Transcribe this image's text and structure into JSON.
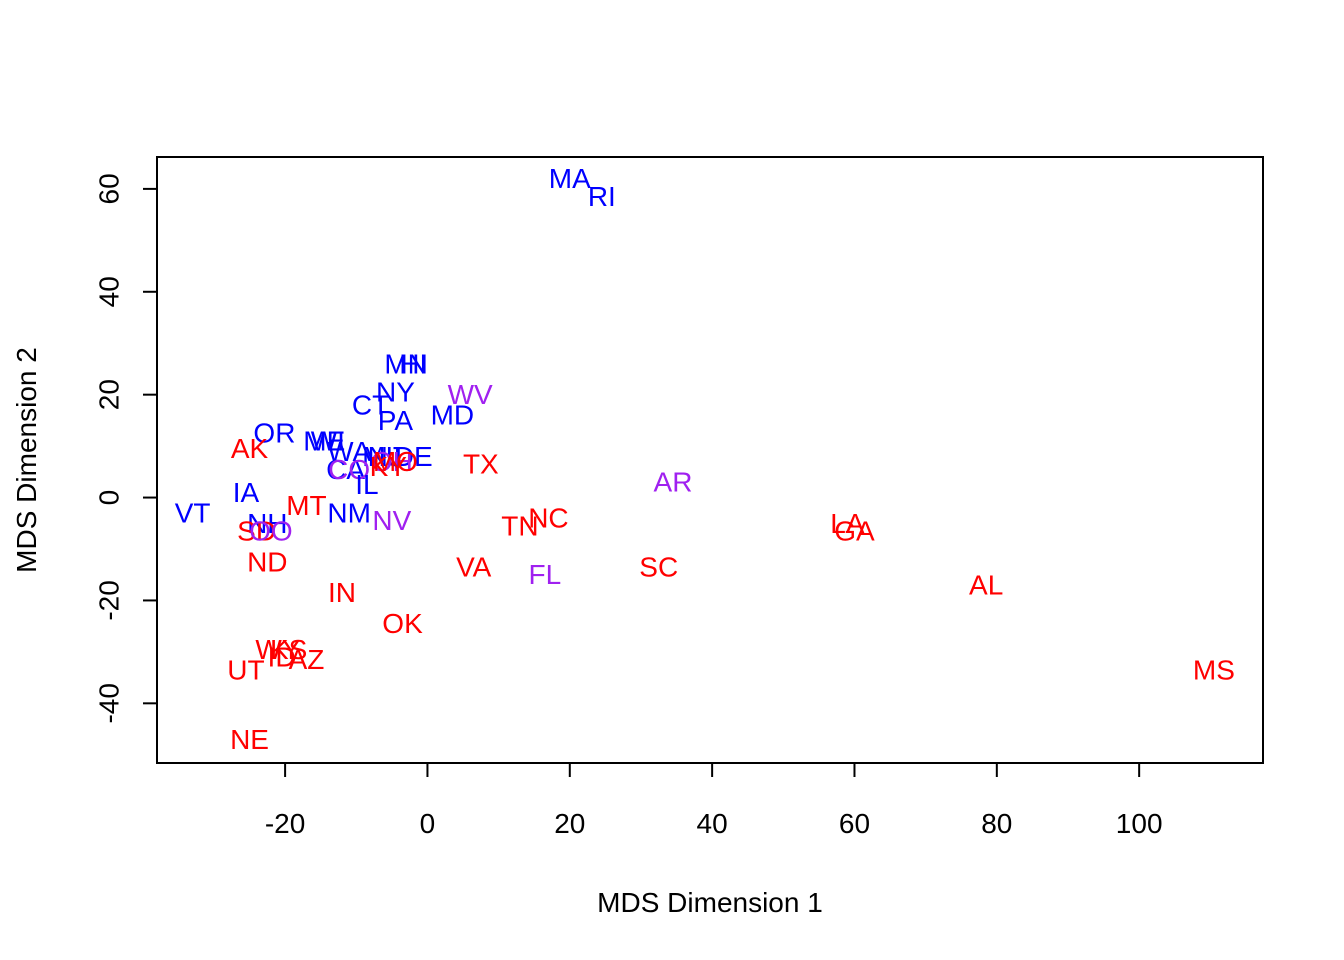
{
  "chart_data": {
    "type": "scatter",
    "title": "",
    "xlabel": "MDS Dimension 1",
    "ylabel": "MDS Dimension 2",
    "xlim": [
      -38,
      117.4
    ],
    "ylim": [
      -51.6,
      66.2
    ],
    "xticks": [
      -20,
      0,
      20,
      40,
      60,
      80,
      100
    ],
    "yticks": [
      -40,
      -20,
      0,
      20,
      40,
      60
    ],
    "grid": false,
    "colors": {
      "red": "#ff0000",
      "blue": "#0000ff",
      "purple": "#a020f0"
    },
    "points": [
      {
        "label": "MA",
        "x": 20,
        "y": 62,
        "color": "blue"
      },
      {
        "label": "RI",
        "x": 24.5,
        "y": 58.5,
        "color": "blue"
      },
      {
        "label": "MN",
        "x": -3,
        "y": 26,
        "color": "blue"
      },
      {
        "label": "HI",
        "x": -2,
        "y": 26,
        "color": "blue"
      },
      {
        "label": "NY",
        "x": -4.5,
        "y": 20.5,
        "color": "blue"
      },
      {
        "label": "WV",
        "x": 6,
        "y": 20,
        "color": "purple"
      },
      {
        "label": "CT",
        "x": -8,
        "y": 18,
        "color": "blue"
      },
      {
        "label": "PA",
        "x": -4.5,
        "y": 15,
        "color": "blue"
      },
      {
        "label": "MD",
        "x": 3.5,
        "y": 16,
        "color": "blue"
      },
      {
        "label": "OR",
        "x": -21.5,
        "y": 12.5,
        "color": "blue"
      },
      {
        "label": "AK",
        "x": -25,
        "y": 9.5,
        "color": "red"
      },
      {
        "label": "ME",
        "x": -14.5,
        "y": 11,
        "color": "blue"
      },
      {
        "label": "WI",
        "x": -14,
        "y": 11,
        "color": "blue"
      },
      {
        "label": "WA",
        "x": -11,
        "y": 9,
        "color": "blue"
      },
      {
        "label": "MI",
        "x": -7,
        "y": 8,
        "color": "blue"
      },
      {
        "label": "NJ",
        "x": -6,
        "y": 8,
        "color": "blue"
      },
      {
        "label": "DE",
        "x": -2,
        "y": 8,
        "color": "blue"
      },
      {
        "label": "OH",
        "x": -5,
        "y": 7,
        "color": "purple"
      },
      {
        "label": "MO",
        "x": -4.5,
        "y": 7,
        "color": "red"
      },
      {
        "label": "KY",
        "x": -5.5,
        "y": 6,
        "color": "red"
      },
      {
        "label": "TX",
        "x": 7.5,
        "y": 6.5,
        "color": "red"
      },
      {
        "label": "CA",
        "x": -11.5,
        "y": 5.5,
        "color": "blue"
      },
      {
        "label": "CO",
        "x": -11,
        "y": 5.5,
        "color": "purple"
      },
      {
        "label": "IL",
        "x": -8.5,
        "y": 2.5,
        "color": "blue"
      },
      {
        "label": "AR",
        "x": 34.5,
        "y": 3,
        "color": "purple"
      },
      {
        "label": "IA",
        "x": -25.5,
        "y": 1,
        "color": "blue"
      },
      {
        "label": "MT",
        "x": -17,
        "y": -1.5,
        "color": "red"
      },
      {
        "label": "VT",
        "x": -33,
        "y": -3,
        "color": "blue"
      },
      {
        "label": "NM",
        "x": -11,
        "y": -3,
        "color": "blue"
      },
      {
        "label": "NV",
        "x": -5,
        "y": -4.5,
        "color": "purple"
      },
      {
        "label": "NC",
        "x": 17,
        "y": -4,
        "color": "red"
      },
      {
        "label": "NH",
        "x": -22.5,
        "y": -5,
        "color": "blue"
      },
      {
        "label": "TN",
        "x": 13,
        "y": -5.5,
        "color": "red"
      },
      {
        "label": "LA",
        "x": 59,
        "y": -5,
        "color": "red"
      },
      {
        "label": "GA",
        "x": 60,
        "y": -6.5,
        "color": "red"
      },
      {
        "label": "SD",
        "x": -24,
        "y": -6.5,
        "color": "red"
      },
      {
        "label": "OO",
        "x": -22,
        "y": -6.5,
        "color": "purple"
      },
      {
        "label": "ND",
        "x": -22.5,
        "y": -12.5,
        "color": "red"
      },
      {
        "label": "VA",
        "x": 6.5,
        "y": -13.5,
        "color": "red"
      },
      {
        "label": "SC",
        "x": 32.5,
        "y": -13.5,
        "color": "red"
      },
      {
        "label": "FL",
        "x": 16.5,
        "y": -15,
        "color": "purple"
      },
      {
        "label": "AL",
        "x": 78.5,
        "y": -17,
        "color": "red"
      },
      {
        "label": "IN",
        "x": -12,
        "y": -18.5,
        "color": "red"
      },
      {
        "label": "OK",
        "x": -3.5,
        "y": -24.5,
        "color": "red"
      },
      {
        "label": "WY",
        "x": -21,
        "y": -29.5,
        "color": "red"
      },
      {
        "label": "KS",
        "x": -19.5,
        "y": -29.5,
        "color": "red"
      },
      {
        "label": "ID",
        "x": -20.5,
        "y": -31,
        "color": "red"
      },
      {
        "label": "AZ",
        "x": -17,
        "y": -31.5,
        "color": "red"
      },
      {
        "label": "UT",
        "x": -25.5,
        "y": -33.5,
        "color": "red"
      },
      {
        "label": "MS",
        "x": 110.5,
        "y": -33.5,
        "color": "red"
      },
      {
        "label": "NE",
        "x": -25,
        "y": -47,
        "color": "red"
      }
    ]
  }
}
